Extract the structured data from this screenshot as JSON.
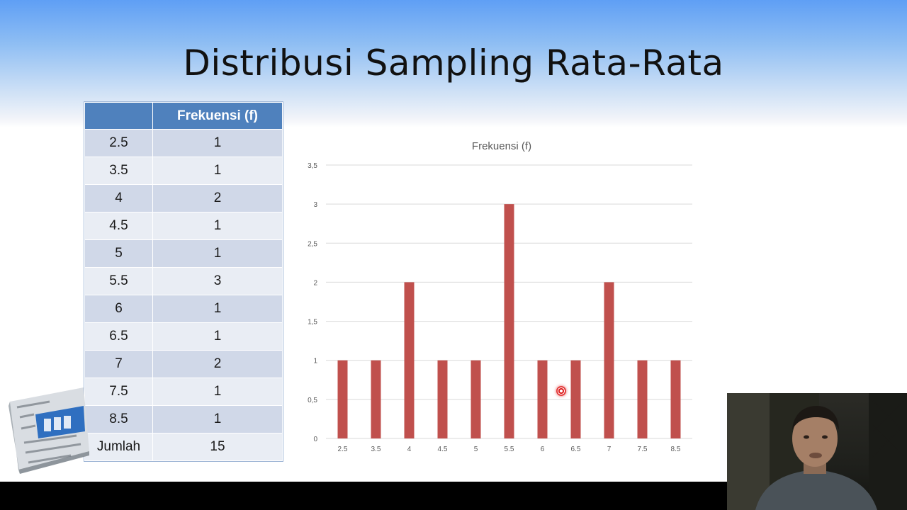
{
  "slide": {
    "title": "Distribusi Sampling Rata-Rata"
  },
  "table": {
    "header": [
      "",
      "Frekuensi (f)"
    ],
    "rows": [
      [
        "2.5",
        "1"
      ],
      [
        "3.5",
        "1"
      ],
      [
        "4",
        "2"
      ],
      [
        "4.5",
        "1"
      ],
      [
        "5",
        "1"
      ],
      [
        "5.5",
        "3"
      ],
      [
        "6",
        "1"
      ],
      [
        "6.5",
        "1"
      ],
      [
        "7",
        "2"
      ],
      [
        "7.5",
        "1"
      ],
      [
        "8.5",
        "1"
      ]
    ],
    "total_label": "Jumlah",
    "total_value": "15"
  },
  "colors": {
    "bar": "#c0504d",
    "table_header": "#4f81bd",
    "row_odd": "#d0d8e8",
    "row_even": "#e9edf4",
    "gridline": "#d9d9d9"
  },
  "chart_data": {
    "type": "bar",
    "title": "Frekuensi (f)",
    "categories": [
      "2.5",
      "3.5",
      "4",
      "4.5",
      "5",
      "5.5",
      "6",
      "6.5",
      "7",
      "7.5",
      "8.5"
    ],
    "values": [
      1,
      1,
      2,
      1,
      1,
      3,
      1,
      1,
      2,
      1,
      1
    ],
    "ylim": [
      0,
      3.5
    ],
    "yticks": [
      "0",
      "0,5",
      "1",
      "1,5",
      "2",
      "2,5",
      "3",
      "3,5"
    ],
    "grid": true,
    "legend": "none"
  },
  "icons": {
    "logo": "statistics-3d-logo-icon",
    "pointer": "laser-pointer-icon",
    "webcam": "presenter-webcam"
  }
}
